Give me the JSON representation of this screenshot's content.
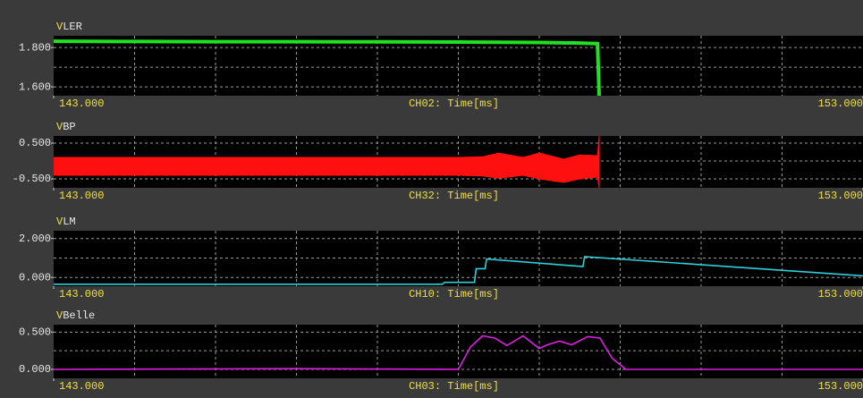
{
  "chart_data": [
    {
      "type": "line",
      "unit": "V",
      "title": "LER",
      "x_label": "CH02: Time[ms]",
      "color": "#22e022",
      "xlim": [
        143,
        153
      ],
      "xticks": [
        {
          "value": 143,
          "label": "143.000"
        },
        {
          "value": 153,
          "label": "153.000"
        }
      ],
      "xgrid": [
        144,
        145,
        146,
        147,
        148,
        149,
        150,
        151,
        152
      ],
      "ylim": [
        1.555,
        1.86
      ],
      "yticks": [
        {
          "value": 1.8,
          "label": "1.800"
        },
        {
          "value": 1.6,
          "label": "1.600"
        }
      ],
      "ygrid": [
        1.6,
        1.7,
        1.8
      ],
      "x": [
        143,
        144,
        145,
        146,
        147,
        148,
        149,
        149.5,
        149.72,
        149.74
      ],
      "values": [
        1.832,
        1.831,
        1.83,
        1.83,
        1.829,
        1.828,
        1.826,
        1.823,
        1.82,
        1.555
      ]
    },
    {
      "type": "band",
      "unit": "V",
      "title": "BP",
      "x_label": "CH32: Time[ms]",
      "color": "#ff1010",
      "xlim": [
        143,
        153
      ],
      "xticks": [
        {
          "value": 143,
          "label": "143.000"
        },
        {
          "value": 153,
          "label": "153.000"
        }
      ],
      "xgrid": [
        144,
        145,
        146,
        147,
        148,
        149,
        150,
        151,
        152
      ],
      "ylim": [
        -0.75,
        0.7
      ],
      "yticks": [
        {
          "value": 0.5,
          "label": "0.500"
        },
        {
          "value": -0.5,
          "label": "-0.500"
        }
      ],
      "ygrid": [
        -0.5,
        0,
        0.5
      ],
      "x": [
        143,
        144,
        145,
        146,
        147,
        148,
        148.3,
        148.5,
        148.8,
        149.0,
        149.3,
        149.5,
        149.72,
        149.74
      ],
      "upper": [
        0.1,
        0.1,
        0.1,
        0.1,
        0.1,
        0.1,
        0.12,
        0.22,
        0.1,
        0.22,
        0.05,
        0.17,
        0.15,
        0.7
      ],
      "lower": [
        -0.4,
        -0.4,
        -0.4,
        -0.4,
        -0.4,
        -0.4,
        -0.42,
        -0.48,
        -0.4,
        -0.5,
        -0.6,
        -0.5,
        -0.45,
        -0.75
      ]
    },
    {
      "type": "line",
      "unit": "V",
      "title": "LM",
      "x_label": "CH10: Time[ms]",
      "color": "#30d0d8",
      "xlim": [
        143,
        153
      ],
      "xticks": [
        {
          "value": 143,
          "label": "143.000"
        },
        {
          "value": 153,
          "label": "153.000"
        }
      ],
      "xgrid": [
        144,
        145,
        146,
        147,
        148,
        149,
        150,
        151,
        152
      ],
      "ylim": [
        -0.45,
        2.4
      ],
      "yticks": [
        {
          "value": 2,
          "label": "2.000"
        },
        {
          "value": 0,
          "label": "0.000"
        }
      ],
      "ygrid": [
        0,
        1,
        2
      ],
      "x": [
        143,
        147.8,
        147.83,
        148.2,
        148.22,
        148.33,
        148.35,
        149.54,
        149.56,
        153
      ],
      "values": [
        -0.35,
        -0.35,
        -0.25,
        -0.25,
        0.45,
        0.45,
        0.95,
        0.56,
        1.07,
        0.08
      ]
    },
    {
      "type": "line",
      "unit": "V",
      "title": "Belle",
      "x_label": "CH03: Time[ms]",
      "color": "#e020e0",
      "xlim": [
        143,
        153
      ],
      "xticks": [
        {
          "value": 143,
          "label": "143.000"
        },
        {
          "value": 153,
          "label": "153.000"
        }
      ],
      "xgrid": [
        144,
        145,
        146,
        147,
        148,
        149,
        150,
        151,
        152
      ],
      "ylim": [
        -0.12,
        0.6
      ],
      "yticks": [
        {
          "value": 0.5,
          "label": "0.500"
        },
        {
          "value": 0,
          "label": "0.000"
        }
      ],
      "ygrid": [
        0,
        0.25,
        0.5
      ],
      "x": [
        143,
        146,
        148.0,
        148.15,
        148.3,
        148.45,
        148.6,
        148.8,
        149.0,
        149.1,
        149.25,
        149.4,
        149.6,
        149.75,
        149.9,
        150.07,
        153
      ],
      "values": [
        0,
        0.01,
        0,
        0.3,
        0.45,
        0.42,
        0.32,
        0.45,
        0.28,
        0.33,
        0.38,
        0.33,
        0.44,
        0.42,
        0.15,
        0,
        0
      ]
    }
  ]
}
